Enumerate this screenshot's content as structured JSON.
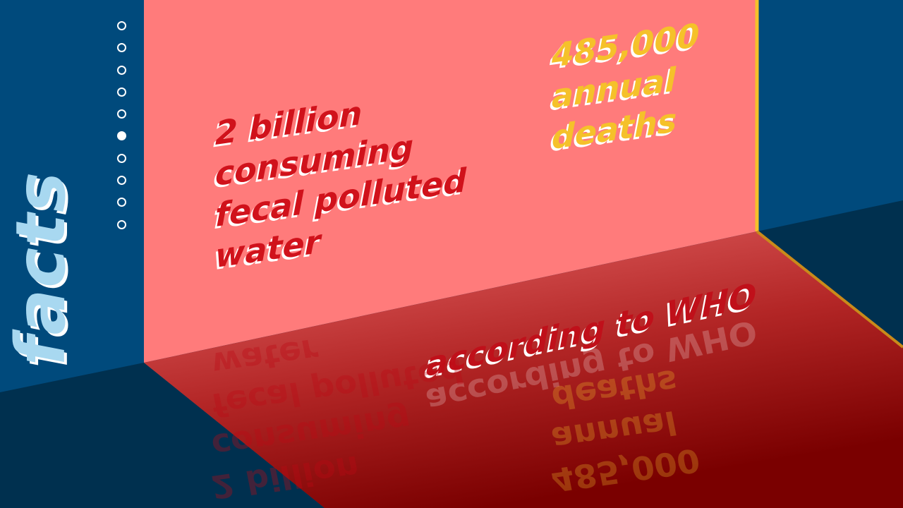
{
  "sidebar": {
    "title": "facts",
    "dots_total": 10,
    "active_index": 5
  },
  "wall": {
    "stat_left": "2 billion\nconsuming\nfecal polluted\nwater",
    "stat_right": "485,000\nannual\ndeaths"
  },
  "floor": {
    "source": "according to WHO"
  },
  "colors": {
    "panel_blue": "#004a7c",
    "floor_navy": "#00304f",
    "wall_pink": "#ff7b7b",
    "floor_red": "#8a0000",
    "accent_yellow": "#f5c12a",
    "text_red": "#d0121b",
    "label_light_blue": "#a8d8f0"
  }
}
